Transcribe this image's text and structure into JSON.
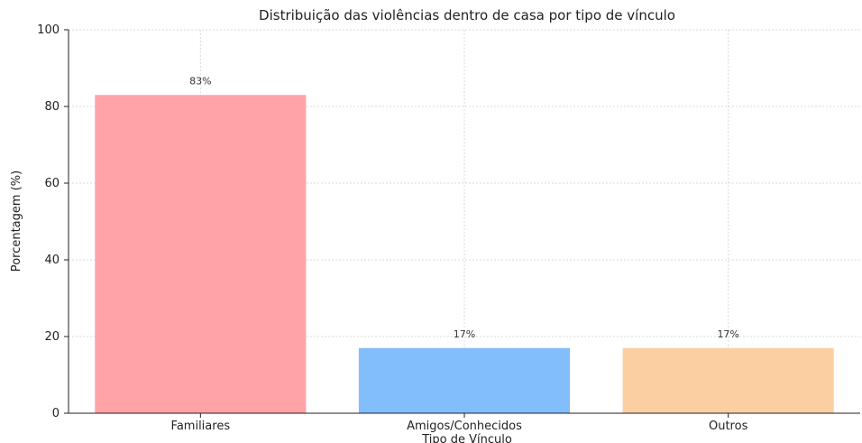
{
  "chart_data": {
    "type": "bar",
    "title": "Distribuição das violências dentro de casa por tipo de vínculo",
    "xlabel": "Tipo de Vínculo",
    "ylabel": "Porcentagem (%)",
    "categories": [
      "Familiares",
      "Amigos/Conhecidos",
      "Outros"
    ],
    "values": [
      83,
      17,
      17
    ],
    "data_labels": [
      "83%",
      "17%",
      "17%"
    ],
    "colors": [
      "#ffa3a8",
      "#82bdfc",
      "#fccfa2"
    ],
    "ylim": [
      0,
      100
    ],
    "yticks": [
      0,
      20,
      40,
      60,
      80,
      100
    ],
    "grid": true,
    "legend": "none"
  }
}
